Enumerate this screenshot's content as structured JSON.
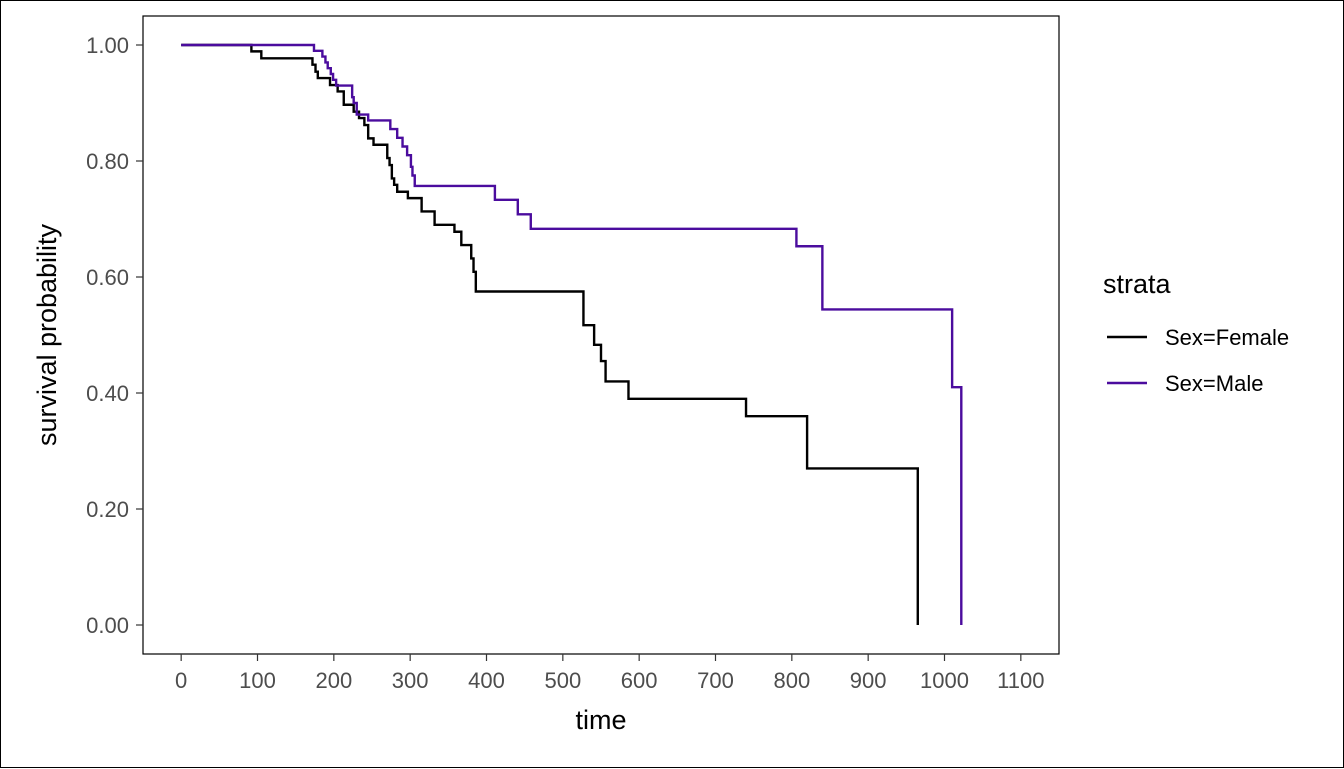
{
  "chart_data": {
    "type": "line",
    "subtype": "step",
    "title": "",
    "xlabel": "time",
    "ylabel": "survival probability",
    "xlim": [
      -50,
      1150
    ],
    "ylim": [
      -0.05,
      1.05
    ],
    "x_ticks": [
      0,
      100,
      200,
      300,
      400,
      500,
      600,
      700,
      800,
      900,
      1000,
      1100
    ],
    "y_ticks": [
      0,
      0.2,
      0.4,
      0.6,
      0.8,
      1.0
    ],
    "x_tick_labels": [
      "0",
      "100",
      "200",
      "300",
      "400",
      "500",
      "600",
      "700",
      "800",
      "900",
      "1000",
      "1100"
    ],
    "y_tick_labels": [
      "0.00",
      "0.20",
      "0.40",
      "0.60",
      "0.80",
      "1.00"
    ],
    "grid": false,
    "legend": {
      "title": "strata",
      "position": "right",
      "entries": [
        "Sex=Female",
        "Sex=Male"
      ]
    },
    "series": [
      {
        "name": "Sex=Female",
        "color": "#000000",
        "x": [
          0,
          92,
          105,
          172,
          176,
          179,
          195,
          205,
          213,
          226,
          233,
          240,
          245,
          252,
          270,
          273,
          276,
          279,
          283,
          297,
          315,
          332,
          358,
          367,
          380,
          383,
          386,
          510,
          527,
          541,
          550,
          556,
          586,
          740,
          820,
          965,
          965
        ],
        "y": [
          1.0,
          0.989,
          0.977,
          0.966,
          0.954,
          0.943,
          0.931,
          0.92,
          0.897,
          0.885,
          0.874,
          0.862,
          0.839,
          0.828,
          0.805,
          0.793,
          0.77,
          0.759,
          0.747,
          0.736,
          0.713,
          0.69,
          0.678,
          0.655,
          0.632,
          0.609,
          0.575,
          0.575,
          0.517,
          0.483,
          0.455,
          0.42,
          0.39,
          0.36,
          0.27,
          0.135,
          0.0
        ]
      },
      {
        "name": "Sex=Male",
        "color": "#4b0c9e",
        "x": [
          0,
          174,
          185,
          189,
          192,
          196,
          199,
          203,
          221,
          224,
          226,
          230,
          245,
          274,
          283,
          290,
          296,
          301,
          303,
          306,
          404,
          411,
          441,
          458,
          806,
          840,
          1010,
          1022,
          1022
        ],
        "y": [
          1.0,
          0.99,
          0.98,
          0.97,
          0.96,
          0.95,
          0.94,
          0.93,
          0.93,
          0.91,
          0.9,
          0.88,
          0.87,
          0.855,
          0.84,
          0.825,
          0.81,
          0.79,
          0.775,
          0.757,
          0.757,
          0.733,
          0.708,
          0.683,
          0.653,
          0.544,
          0.41,
          0.205,
          0.0
        ]
      }
    ]
  }
}
